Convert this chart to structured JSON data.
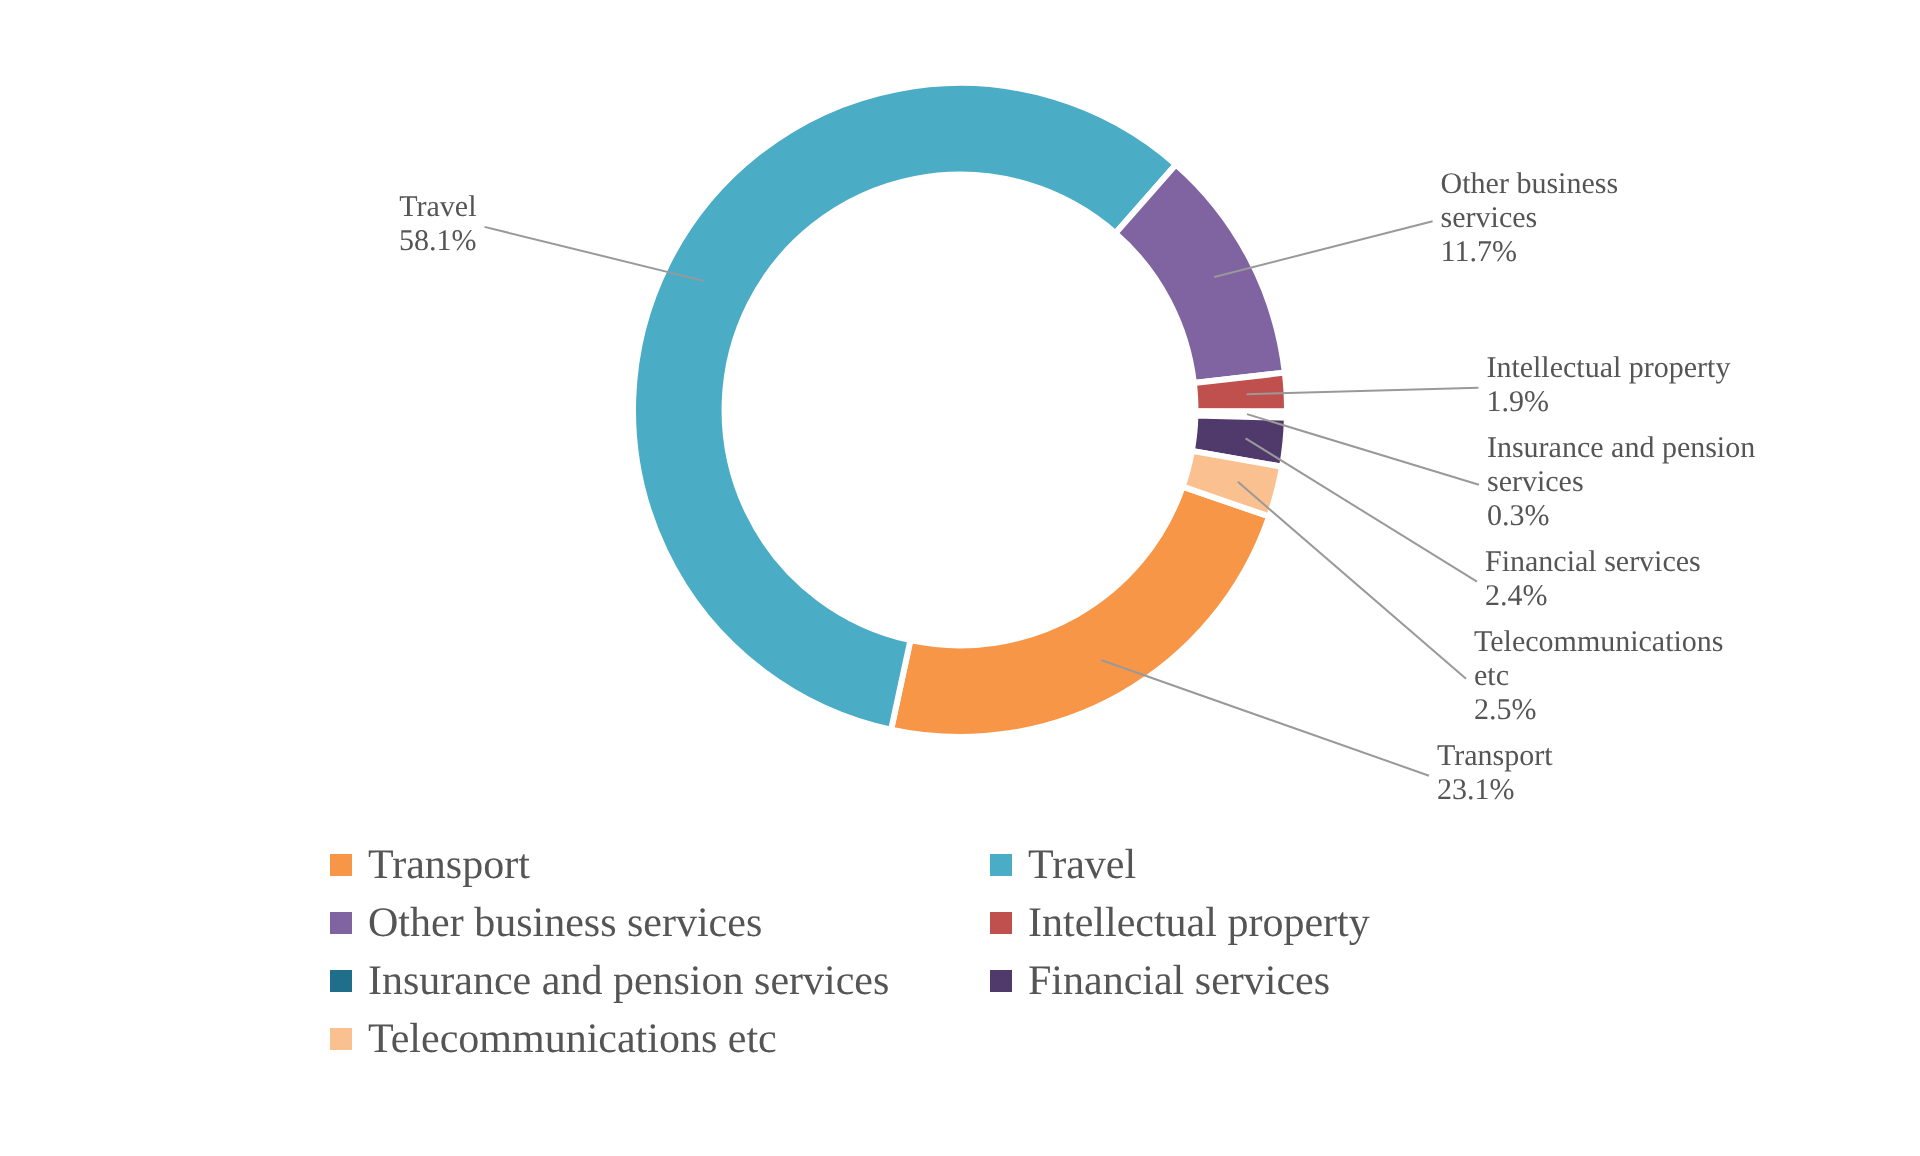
{
  "chart_data": {
    "type": "donut",
    "categories": [
      "Transport",
      "Travel",
      "Other business services",
      "Intellectual property",
      "Insurance and pension services",
      "Financial services",
      "Telecommunications etc"
    ],
    "values": [
      23.1,
      58.1,
      11.7,
      1.9,
      0.3,
      2.4,
      2.5
    ],
    "colors": [
      "#f79646",
      "#4bacc6",
      "#8064a2",
      "#c0504d",
      "#1f6f8b",
      "#4f3a6b",
      "#fac090"
    ],
    "value_labels": [
      "23.1%",
      "58.1%",
      "11.7%",
      "1.9%",
      "0.3%",
      "2.4%",
      "2.5%"
    ],
    "legend": "bottom"
  }
}
